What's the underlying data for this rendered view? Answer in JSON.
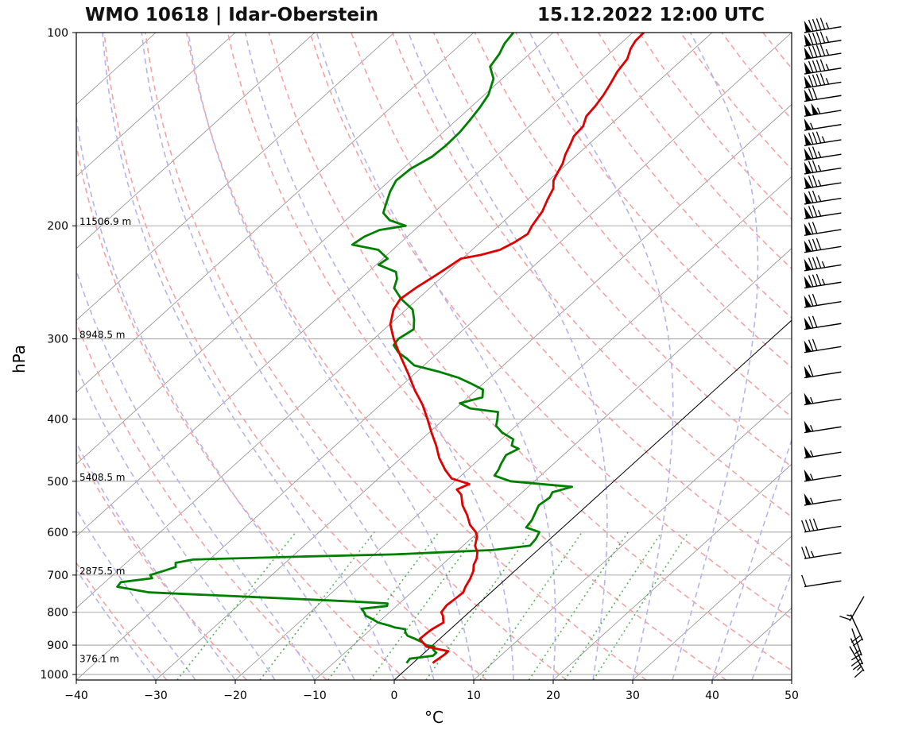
{
  "chart_data": {
    "type": "skew-t",
    "title_left": "WMO 10618 | Idar-Oberstein",
    "title_right": "15.12.2022 12:00 UTC",
    "xlabel": "°C",
    "ylabel": "hPa",
    "xlim": [
      -40,
      50
    ],
    "ylim_hpa": [
      1020,
      100
    ],
    "x_ticks": [
      -40,
      -30,
      -20,
      -10,
      0,
      10,
      20,
      30,
      40,
      50
    ],
    "x_tick_labels": [
      "−40",
      "−30",
      "−20",
      "−10",
      "0",
      "10",
      "20",
      "30",
      "40",
      "50"
    ],
    "y_ticks": [
      100,
      200,
      300,
      400,
      500,
      600,
      700,
      800,
      900,
      1000
    ],
    "y_tick_labels": [
      "100",
      "200",
      "300",
      "400",
      "500",
      "600",
      "700",
      "800",
      "900",
      "1000"
    ],
    "height_labels": [
      {
        "p": 200,
        "text": "11506.9 m"
      },
      {
        "p": 300,
        "text": "8948.5 m"
      },
      {
        "p": 500,
        "text": "5408.5 m"
      },
      {
        "p": 700,
        "text": "2875.5 m"
      },
      {
        "p": 960,
        "text": "376.1 m"
      }
    ],
    "temperature_profile": {
      "name": "Temperature",
      "color": "#e00000",
      "points": [
        [
          960,
          2.5
        ],
        [
          955,
          2.5
        ],
        [
          930,
          2.8
        ],
        [
          920,
          2.8
        ],
        [
          905,
          -0.6
        ],
        [
          880,
          -2.5
        ],
        [
          860,
          -2.4
        ],
        [
          850,
          -2.3
        ],
        [
          830,
          -1.8
        ],
        [
          810,
          -2.8
        ],
        [
          800,
          -3.5
        ],
        [
          780,
          -3.8
        ],
        [
          760,
          -3.6
        ],
        [
          745,
          -3.5
        ],
        [
          730,
          -4.0
        ],
        [
          710,
          -4.5
        ],
        [
          690,
          -5.2
        ],
        [
          675,
          -6.0
        ],
        [
          660,
          -6.5
        ],
        [
          645,
          -7.3
        ],
        [
          630,
          -8.5
        ],
        [
          610,
          -9.5
        ],
        [
          600,
          -10.3
        ],
        [
          585,
          -12.0
        ],
        [
          565,
          -13.7
        ],
        [
          545,
          -15.7
        ],
        [
          525,
          -17.3
        ],
        [
          515,
          -18.6
        ],
        [
          505,
          -17.8
        ],
        [
          495,
          -20.8
        ],
        [
          480,
          -22.8
        ],
        [
          460,
          -25.2
        ],
        [
          440,
          -27.3
        ],
        [
          420,
          -29.7
        ],
        [
          400,
          -32.1
        ],
        [
          380,
          -34.7
        ],
        [
          360,
          -37.8
        ],
        [
          340,
          -40.8
        ],
        [
          320,
          -44.1
        ],
        [
          300,
          -47.5
        ],
        [
          285,
          -49.9
        ],
        [
          270,
          -51.6
        ],
        [
          260,
          -52.2
        ],
        [
          250,
          -51.8
        ],
        [
          240,
          -51.1
        ],
        [
          232,
          -50.6
        ],
        [
          225,
          -50.2
        ],
        [
          222,
          -48.2
        ],
        [
          218,
          -46.5
        ],
        [
          212,
          -45.7
        ],
        [
          206,
          -45.2
        ],
        [
          200,
          -45.8
        ],
        [
          190,
          -46.5
        ],
        [
          182,
          -47.5
        ],
        [
          175,
          -48.3
        ],
        [
          170,
          -49.4
        ],
        [
          165,
          -50.0
        ],
        [
          160,
          -50.6
        ],
        [
          155,
          -51.5
        ],
        [
          150,
          -52.2
        ],
        [
          145,
          -53.0
        ],
        [
          140,
          -53.2
        ],
        [
          135,
          -54.2
        ],
        [
          130,
          -54.5
        ],
        [
          125,
          -55.0
        ],
        [
          120,
          -55.7
        ],
        [
          115,
          -56.5
        ],
        [
          110,
          -57.0
        ],
        [
          106,
          -58.0
        ],
        [
          103,
          -58.5
        ],
        [
          100,
          -58.6
        ]
      ]
    },
    "dewpoint_profile": {
      "name": "Dewpoint",
      "color": "#008000",
      "points": [
        [
          960,
          -0.8
        ],
        [
          945,
          -1.0
        ],
        [
          935,
          1.5
        ],
        [
          925,
          1.5
        ],
        [
          915,
          0.7
        ],
        [
          905,
          0.4
        ],
        [
          900,
          -0.8
        ],
        [
          890,
          -1.8
        ],
        [
          880,
          -3.1
        ],
        [
          870,
          -4.5
        ],
        [
          860,
          -5.2
        ],
        [
          850,
          -5.7
        ],
        [
          845,
          -7.2
        ],
        [
          840,
          -8.0
        ],
        [
          830,
          -10.0
        ],
        [
          820,
          -11.2
        ],
        [
          810,
          -12.5
        ],
        [
          800,
          -13.2
        ],
        [
          790,
          -14.0
        ],
        [
          782,
          -11.2
        ],
        [
          775,
          -11.5
        ],
        [
          770,
          -15.8
        ],
        [
          760,
          -26.5
        ],
        [
          745,
          -43.0
        ],
        [
          730,
          -47.8
        ],
        [
          718,
          -48.0
        ],
        [
          708,
          -44.6
        ],
        [
          700,
          -45.3
        ],
        [
          690,
          -44.2
        ],
        [
          680,
          -43.2
        ],
        [
          670,
          -43.8
        ],
        [
          662,
          -42.0
        ],
        [
          655,
          -28.8
        ],
        [
          650,
          -17.5
        ],
        [
          645,
          -11.8
        ],
        [
          640,
          -5.7
        ],
        [
          630,
          -1.6
        ],
        [
          615,
          -1.8
        ],
        [
          600,
          -2.3
        ],
        [
          590,
          -4.6
        ],
        [
          575,
          -4.9
        ],
        [
          560,
          -5.5
        ],
        [
          545,
          -6.1
        ],
        [
          530,
          -5.8
        ],
        [
          520,
          -6.2
        ],
        [
          510,
          -4.5
        ],
        [
          500,
          -13.0
        ],
        [
          490,
          -15.8
        ],
        [
          480,
          -16.1
        ],
        [
          470,
          -16.6
        ],
        [
          455,
          -17.2
        ],
        [
          445,
          -16.5
        ],
        [
          440,
          -17.8
        ],
        [
          430,
          -18.5
        ],
        [
          420,
          -20.8
        ],
        [
          410,
          -22.5
        ],
        [
          400,
          -23.3
        ],
        [
          390,
          -24.2
        ],
        [
          385,
          -28.2
        ],
        [
          378,
          -30.2
        ],
        [
          370,
          -28.2
        ],
        [
          360,
          -29.2
        ],
        [
          352,
          -31.6
        ],
        [
          345,
          -33.9
        ],
        [
          338,
          -37.0
        ],
        [
          330,
          -41.2
        ],
        [
          322,
          -43.1
        ],
        [
          315,
          -45.0
        ],
        [
          307,
          -46.6
        ],
        [
          300,
          -46.9
        ],
        [
          290,
          -46.3
        ],
        [
          280,
          -47.6
        ],
        [
          270,
          -49.2
        ],
        [
          260,
          -52.1
        ],
        [
          250,
          -54.5
        ],
        [
          242,
          -55.4
        ],
        [
          236,
          -56.5
        ],
        [
          230,
          -59.7
        ],
        [
          225,
          -59.4
        ],
        [
          218,
          -61.8
        ],
        [
          214,
          -65.8
        ],
        [
          208,
          -65.4
        ],
        [
          203,
          -64.4
        ],
        [
          200,
          -61.7
        ],
        [
          196,
          -64.5
        ],
        [
          191,
          -66.3
        ],
        [
          185,
          -67.2
        ],
        [
          177,
          -68.4
        ],
        [
          170,
          -69.2
        ],
        [
          163,
          -69.0
        ],
        [
          156,
          -68.0
        ],
        [
          150,
          -67.8
        ],
        [
          143,
          -67.9
        ],
        [
          137,
          -68.3
        ],
        [
          131,
          -68.8
        ],
        [
          125,
          -69.5
        ],
        [
          118,
          -71.1
        ],
        [
          113,
          -73.2
        ],
        [
          108,
          -73.8
        ],
        [
          104,
          -74.6
        ],
        [
          100,
          -75.0
        ]
      ]
    },
    "wind_barbs": [
      {
        "p": 100,
        "kt": 95
      },
      {
        "p": 105,
        "kt": 95
      },
      {
        "p": 110,
        "kt": 95
      },
      {
        "p": 116,
        "kt": 95
      },
      {
        "p": 122,
        "kt": 95
      },
      {
        "p": 128,
        "kt": 70
      },
      {
        "p": 135,
        "kt": 105
      },
      {
        "p": 142,
        "kt": 55
      },
      {
        "p": 150,
        "kt": 85
      },
      {
        "p": 158,
        "kt": 75
      },
      {
        "p": 166,
        "kt": 75
      },
      {
        "p": 175,
        "kt": 75
      },
      {
        "p": 185,
        "kt": 75
      },
      {
        "p": 195,
        "kt": 75
      },
      {
        "p": 207,
        "kt": 70
      },
      {
        "p": 220,
        "kt": 80
      },
      {
        "p": 235,
        "kt": 85
      },
      {
        "p": 250,
        "kt": 85
      },
      {
        "p": 268,
        "kt": 70
      },
      {
        "p": 290,
        "kt": 70
      },
      {
        "p": 315,
        "kt": 70
      },
      {
        "p": 345,
        "kt": 60
      },
      {
        "p": 380,
        "kt": 55
      },
      {
        "p": 420,
        "kt": 55
      },
      {
        "p": 460,
        "kt": 55
      },
      {
        "p": 500,
        "kt": 55
      },
      {
        "p": 545,
        "kt": 55
      },
      {
        "p": 600,
        "kt": 40
      },
      {
        "p": 660,
        "kt": 25
      },
      {
        "p": 730,
        "kt": 10
      }
    ],
    "lower_wind_glyphs": [
      {
        "p": 790,
        "kt": 15,
        "dir": 300
      },
      {
        "p": 845,
        "kt": 20,
        "dir": 245
      },
      {
        "p": 890,
        "kt": 15,
        "dir": 250
      },
      {
        "p": 920,
        "kt": 20,
        "dir": 245
      },
      {
        "p": 945,
        "kt": 15,
        "dir": 240
      }
    ]
  }
}
